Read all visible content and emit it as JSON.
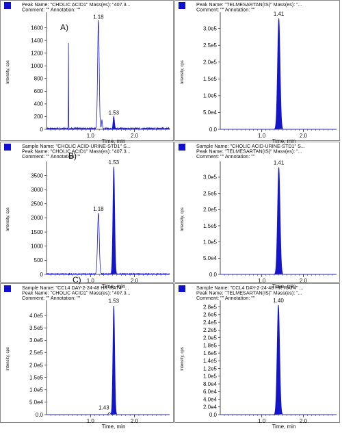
{
  "chart_data": [
    {
      "type": "line",
      "panel_letter": "A)",
      "header": [
        "Peak Name: \"CHOLIC ACID1\"  Mass(es): \"407.3...",
        "Comment: \"\"   Annotation: \"\""
      ],
      "xlabel": "Time, min",
      "ylabel": "Intensity, cps",
      "xlim": [
        0.0,
        2.8
      ],
      "ylim": [
        0,
        1800
      ],
      "xticks": [
        1.0,
        2.0
      ],
      "yticks": [
        0,
        200,
        400,
        600,
        800,
        1000,
        1200,
        1400,
        1600
      ],
      "ytick_labels": [
        "0",
        "200",
        "400",
        "600",
        "800",
        "1000",
        "1200",
        "1400",
        "1600"
      ],
      "peaks": [
        {
          "rt": 1.18,
          "height": 1700,
          "width": 0.018,
          "label": "1.18"
        },
        {
          "rt": 1.53,
          "height": 190,
          "width": 0.015,
          "label": "1.53",
          "filled": true
        }
      ],
      "minor_peaks": [
        {
          "rt": 1.26,
          "height": 140
        },
        {
          "rt": 0.5,
          "height": 1350,
          "width": 0.003
        }
      ],
      "noise_level": 25
    },
    {
      "type": "line",
      "header": [
        "Peak Name: \"TELMESARTAN(IS)\"  Mass(es): \"...",
        "Comment: \"\"   Annotation: \"\""
      ],
      "xlabel": "Time, min",
      "ylabel": "Intensity, cps",
      "xlim": [
        0.0,
        2.8
      ],
      "ylim": [
        0,
        340000
      ],
      "xticks": [
        1.0,
        2.0
      ],
      "yticks": [
        0,
        50000,
        100000,
        150000,
        200000,
        250000,
        300000
      ],
      "ytick_labels": [
        "0.0",
        "5.0e4",
        "1.0e5",
        "1.5e5",
        "2.0e5",
        "2.5e5",
        "3.0e5"
      ],
      "peaks": [
        {
          "rt": 1.41,
          "height": 330000,
          "width": 0.03,
          "label": "1.41",
          "filled": true
        }
      ],
      "minor_peaks": [],
      "noise_level": 0
    },
    {
      "type": "line",
      "panel_letter": "B)",
      "header": [
        "Sample Name: \"CHOLIC ACID-URINE-STD1\"  S...",
        "Peak Name: \"CHOLIC ACID1\"  Mass(es): \"407.3...",
        "Comment: \"\"   Annotation: \"\""
      ],
      "xlabel": "Time, min",
      "ylabel": "Intensity, cps",
      "xlim": [
        0.0,
        2.8
      ],
      "ylim": [
        0,
        3900
      ],
      "xticks": [
        1.0,
        2.0
      ],
      "yticks": [
        0,
        500,
        1000,
        1500,
        2000,
        2500,
        3000,
        3500
      ],
      "ytick_labels": [
        "0",
        "500",
        "1000",
        "1500",
        "2000",
        "2500",
        "3000",
        "3500"
      ],
      "peaks": [
        {
          "rt": 1.18,
          "height": 2150,
          "width": 0.02,
          "label": "1.18"
        },
        {
          "rt": 1.53,
          "height": 3800,
          "width": 0.02,
          "label": "1.53",
          "filled": true
        }
      ],
      "minor_peaks": [],
      "noise_level": 30
    },
    {
      "type": "line",
      "header": [
        "Sample Name: \"CHOLIC ACID-URINE-STD1\"  S...",
        "Peak Name: \"TELMESARTAN(IS)\"  Mass(es): \"...",
        "Comment: \"\"   Annotation: \"\""
      ],
      "xlabel": "Time, min",
      "ylabel": "Intensity, cps",
      "xlim": [
        0.0,
        2.8
      ],
      "ylim": [
        0,
        340000
      ],
      "xticks": [
        1.0,
        2.0
      ],
      "yticks": [
        0,
        50000,
        100000,
        150000,
        200000,
        250000,
        300000
      ],
      "ytick_labels": [
        "0.0",
        "5.0e4",
        "1.0e5",
        "1.5e5",
        "2.0e5",
        "2.5e5",
        "3.0e5"
      ],
      "peaks": [
        {
          "rt": 1.41,
          "height": 330000,
          "width": 0.03,
          "label": "1.41",
          "filled": true
        }
      ],
      "minor_peaks": [],
      "noise_level": 0
    },
    {
      "type": "line",
      "panel_letter": "C)",
      "header": [
        "Sample Name: \"CCL4 DAY-2-24-48 HR-RAT4\"  ...",
        "Peak Name: \"CHOLIC ACID1\"  Mass(es): \"407.3...",
        "Comment: \"\"   Annotation: \"\""
      ],
      "xlabel": "Time, min",
      "ylabel": "Intensity, cps",
      "xlim": [
        0.0,
        2.8
      ],
      "ylim": [
        0,
        450000
      ],
      "xticks": [
        1.0,
        2.0
      ],
      "yticks": [
        0,
        50000,
        100000,
        150000,
        200000,
        250000,
        300000,
        350000,
        400000
      ],
      "ytick_labels": [
        "0.0",
        "5.0e4",
        "1.0e5",
        "1.5e5",
        "2.0e5",
        "2.5e5",
        "3.0e5",
        "3.5e5",
        "4.0e5"
      ],
      "peaks": [
        {
          "rt": 1.43,
          "height": 9000,
          "width": 0.02,
          "label": "1.43"
        },
        {
          "rt": 1.53,
          "height": 440000,
          "width": 0.02,
          "label": "1.53",
          "filled": true
        }
      ],
      "minor_peaks": [],
      "noise_level": 0
    },
    {
      "type": "line",
      "header": [
        "Sample Name: \"CCL4 DAY-2-24-48 HR-RAT4\"  ...",
        "Peak Name: \"TELMESARTAN(IS)\"  Mass(es): \"...",
        "Comment: \"\"   Annotation: \"\""
      ],
      "xlabel": "Time, min",
      "ylabel": "Intensity, cps",
      "xlim": [
        0.0,
        2.8
      ],
      "ylim": [
        0,
        290000
      ],
      "xticks": [
        1.0,
        2.0
      ],
      "yticks": [
        0,
        20000,
        40000,
        60000,
        80000,
        100000,
        120000,
        140000,
        160000,
        180000,
        200000,
        220000,
        240000,
        260000,
        280000
      ],
      "ytick_labels": [
        "0.0",
        "2.0e4",
        "4.0e4",
        "6.0e4",
        "8.0e4",
        "1.0e5",
        "1.2e5",
        "1.4e5",
        "1.6e5",
        "1.8e5",
        "2.0e5",
        "2.2e5",
        "2.4e5",
        "2.6e5",
        "2.8e5"
      ],
      "peaks": [
        {
          "rt": 1.4,
          "height": 285000,
          "width": 0.03,
          "label": "1.40",
          "filled": true
        }
      ],
      "minor_peaks": [],
      "noise_level": 0
    }
  ],
  "colors": {
    "trace": "#1a1ad6",
    "fill": "#1414c8",
    "marker": "#1010d0",
    "axis": "#222222",
    "frame": "#888888"
  }
}
